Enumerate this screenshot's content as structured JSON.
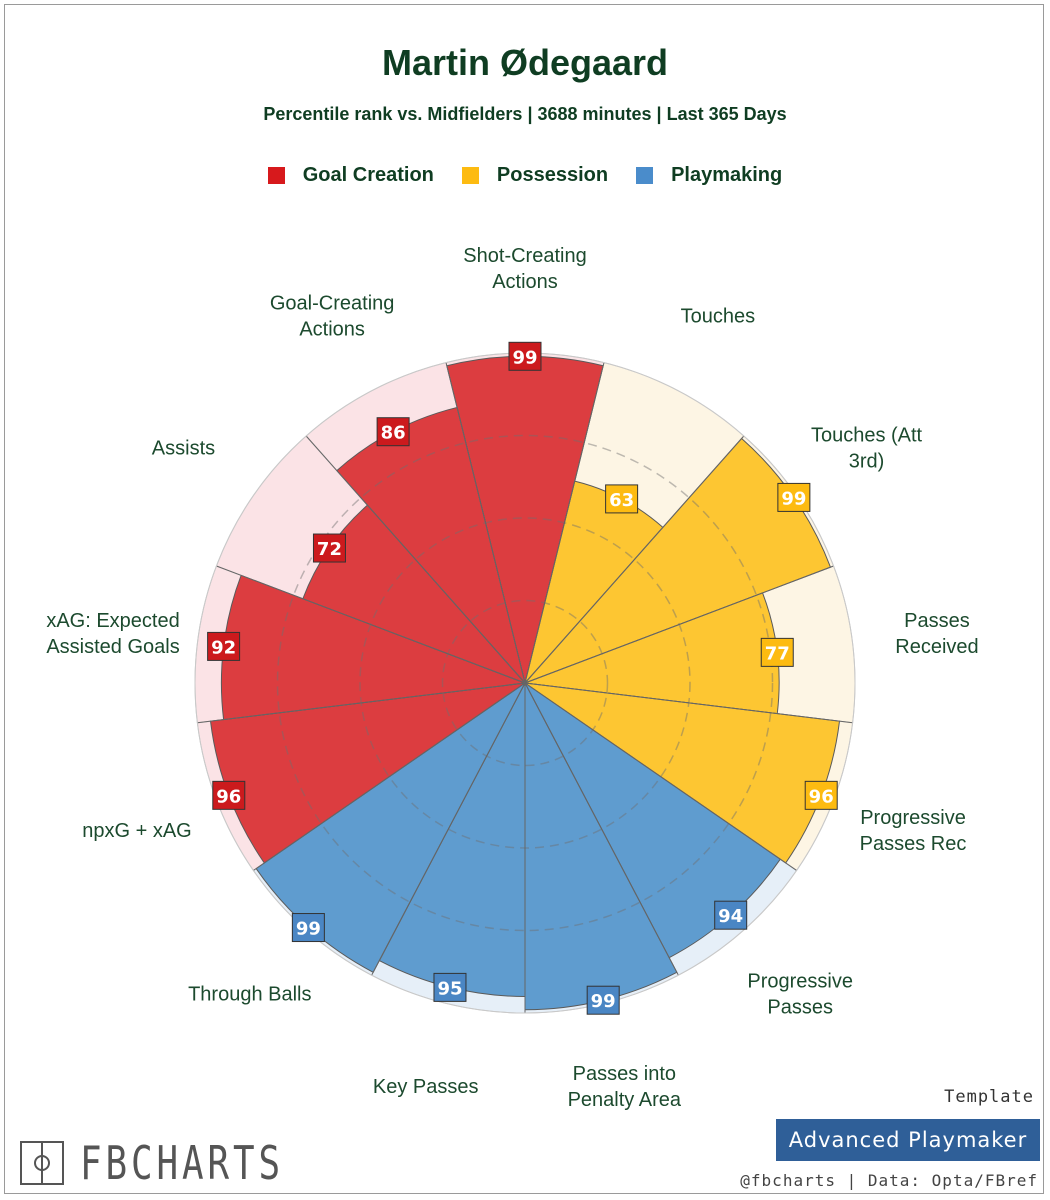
{
  "header": {
    "title": "Martin Ødegaard",
    "subtitle": "Percentile rank vs. Midfielders | 3688 minutes | Last 365 Days"
  },
  "legend": [
    {
      "label": "Goal Creation",
      "color": "#d7191c"
    },
    {
      "label": "Possession",
      "color": "#fdbb11"
    },
    {
      "label": "Playmaking",
      "color": "#4a8ccb"
    }
  ],
  "chart_data": {
    "type": "polar-bar",
    "range": [
      0,
      100
    ],
    "series": [
      {
        "name": "Goal Creation",
        "color": "#d7191c",
        "bar_color": "#dc3d40",
        "bg_color": "#fbe3e6",
        "box_color": "#cc1a1d"
      },
      {
        "name": "Possession",
        "color": "#fdbb11",
        "bar_color": "#fdc632",
        "bg_color": "#fdf5e4",
        "box_color": "#fdbb11"
      },
      {
        "name": "Playmaking",
        "color": "#4a8ccb",
        "bar_color": "#5f9ccf",
        "bg_color": "#e6eff8",
        "box_color": "#4a86c4"
      }
    ],
    "categories": [
      {
        "label": "Shot-Creating Actions",
        "lines": [
          "Shot-Creating",
          "Actions"
        ],
        "value": 99,
        "group": "Goal Creation"
      },
      {
        "label": "Touches",
        "lines": [
          "Touches"
        ],
        "value": 63,
        "group": "Possession"
      },
      {
        "label": "Touches (Att 3rd)",
        "lines": [
          "Touches (Att",
          "3rd)"
        ],
        "value": 99,
        "group": "Possession"
      },
      {
        "label": "Passes Received",
        "lines": [
          "Passes",
          "Received"
        ],
        "value": 77,
        "group": "Possession"
      },
      {
        "label": "Progressive Passes Rec",
        "lines": [
          "Progressive",
          "Passes Rec"
        ],
        "value": 96,
        "group": "Possession"
      },
      {
        "label": "Progressive Passes",
        "lines": [
          "Progressive",
          "Passes"
        ],
        "value": 94,
        "group": "Playmaking"
      },
      {
        "label": "Passes into Penalty Area",
        "lines": [
          "Passes into",
          "Penalty Area"
        ],
        "value": 99,
        "group": "Playmaking"
      },
      {
        "label": "Key Passes",
        "lines": [
          "Key Passes"
        ],
        "value": 95,
        "group": "Playmaking"
      },
      {
        "label": "Through Balls",
        "lines": [
          "Through Balls"
        ],
        "value": 99,
        "group": "Playmaking"
      },
      {
        "label": "npxG + xAG",
        "lines": [
          "npxG + xAG"
        ],
        "value": 96,
        "group": "Goal Creation"
      },
      {
        "label": "xAG: Expected Assisted Goals",
        "lines": [
          "xAG: Expected",
          "Assisted Goals"
        ],
        "value": 92,
        "group": "Goal Creation"
      },
      {
        "label": "Assists",
        "lines": [
          "Assists"
        ],
        "value": 72,
        "group": "Goal Creation"
      },
      {
        "label": "Goal-Creating Actions",
        "lines": [
          "Goal-Creating",
          "Actions"
        ],
        "value": 86,
        "group": "Goal Creation"
      }
    ]
  },
  "footer": {
    "template_label": "Template",
    "template_name": "Advanced Playmaker",
    "credits": "@fbcharts | Data: Opta/FBref",
    "brand": "FBCHARTS"
  }
}
